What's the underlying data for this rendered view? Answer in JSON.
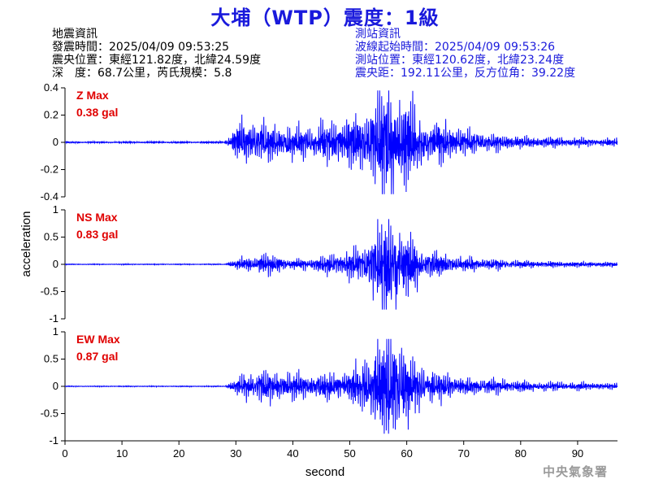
{
  "title": "大埔（WTP）震度：1級",
  "quake_info": {
    "heading": "地震資訊",
    "origin_time": "發震時間：2025/04/09 09:53:25",
    "epicenter": "震央位置：東經121.82度，北緯24.59度",
    "depth_mag": "深　度：68.7公里，芮氏規模：5.8"
  },
  "station_info": {
    "heading": "測站資訊",
    "wave_start": "波線起始時間：2025/04/09 09:53:26",
    "location": "測站位置：東經120.62度，北緯23.24度",
    "distance": "震央距：192.11公里，反方位角：39.22度"
  },
  "footer": "中央氣象署",
  "colors": {
    "title": "#1a1adc",
    "trace": "#0000ff",
    "label": "#e00000",
    "footer": "#9a9a9a"
  },
  "chart_data": [
    {
      "type": "line",
      "component": "Z",
      "label_line1": "Z Max",
      "label_line2": "0.38 gal",
      "ylabel": "acceleration",
      "ylim": [
        -0.4,
        0.4
      ],
      "yticks": [
        -0.4,
        -0.2,
        0,
        0.2,
        0.4
      ],
      "ytick_labels": [
        "-0.4",
        "-0.2",
        "0",
        "0.2",
        "0.4"
      ],
      "xlim": [
        0,
        97
      ],
      "max_abs": 0.38,
      "envelope": [
        {
          "t": 0,
          "a": 0.004
        },
        {
          "t": 28,
          "a": 0.005
        },
        {
          "t": 29.5,
          "a": 0.06
        },
        {
          "t": 31,
          "a": 0.12
        },
        {
          "t": 34,
          "a": 0.11
        },
        {
          "t": 38,
          "a": 0.09
        },
        {
          "t": 42,
          "a": 0.08
        },
        {
          "t": 47,
          "a": 0.11
        },
        {
          "t": 52,
          "a": 0.16
        },
        {
          "t": 55,
          "a": 0.24
        },
        {
          "t": 57,
          "a": 0.33
        },
        {
          "t": 60,
          "a": 0.22
        },
        {
          "t": 64,
          "a": 0.12
        },
        {
          "t": 70,
          "a": 0.07
        },
        {
          "t": 80,
          "a": 0.03
        },
        {
          "t": 97,
          "a": 0.02
        }
      ],
      "peak_time": 57.3
    },
    {
      "type": "line",
      "component": "NS",
      "label_line1": "NS Max",
      "label_line2": "0.83 gal",
      "ylim": [
        -1,
        1
      ],
      "yticks": [
        -1,
        -0.5,
        0,
        0.5,
        1
      ],
      "ytick_labels": [
        "-1",
        "-0.5",
        "0",
        "0.5",
        "1"
      ],
      "xlim": [
        0,
        97
      ],
      "max_abs": 0.83,
      "envelope": [
        {
          "t": 0,
          "a": 0.005
        },
        {
          "t": 28,
          "a": 0.006
        },
        {
          "t": 30,
          "a": 0.06
        },
        {
          "t": 34,
          "a": 0.14
        },
        {
          "t": 38,
          "a": 0.12
        },
        {
          "t": 39,
          "a": 0.05
        },
        {
          "t": 42,
          "a": 0.08
        },
        {
          "t": 48,
          "a": 0.14
        },
        {
          "t": 52,
          "a": 0.25
        },
        {
          "t": 55,
          "a": 0.55
        },
        {
          "t": 57,
          "a": 0.72
        },
        {
          "t": 60,
          "a": 0.4
        },
        {
          "t": 64,
          "a": 0.18
        },
        {
          "t": 70,
          "a": 0.1
        },
        {
          "t": 80,
          "a": 0.05
        },
        {
          "t": 97,
          "a": 0.03
        }
      ],
      "peak_time": 58.1
    },
    {
      "type": "line",
      "component": "EW",
      "label_line1": "EW Max",
      "label_line2": "0.87 gal",
      "ylim": [
        -1,
        1
      ],
      "yticks": [
        -1,
        -0.5,
        0,
        0.5,
        1
      ],
      "ytick_labels": [
        "-1",
        "-0.5",
        "0",
        "0.5",
        "1"
      ],
      "xlim": [
        0,
        97
      ],
      "xticks": [
        0,
        10,
        20,
        30,
        40,
        50,
        60,
        70,
        80,
        90
      ],
      "xlabel": "second",
      "max_abs": 0.87,
      "envelope": [
        {
          "t": 0,
          "a": 0.005
        },
        {
          "t": 28,
          "a": 0.006
        },
        {
          "t": 30,
          "a": 0.1
        },
        {
          "t": 33,
          "a": 0.22
        },
        {
          "t": 38,
          "a": 0.18
        },
        {
          "t": 44,
          "a": 0.16
        },
        {
          "t": 50,
          "a": 0.22
        },
        {
          "t": 54,
          "a": 0.45
        },
        {
          "t": 57,
          "a": 0.78
        },
        {
          "t": 60,
          "a": 0.45
        },
        {
          "t": 64,
          "a": 0.22
        },
        {
          "t": 70,
          "a": 0.12
        },
        {
          "t": 80,
          "a": 0.07
        },
        {
          "t": 97,
          "a": 0.04
        }
      ],
      "peak_time": 56.8
    }
  ]
}
